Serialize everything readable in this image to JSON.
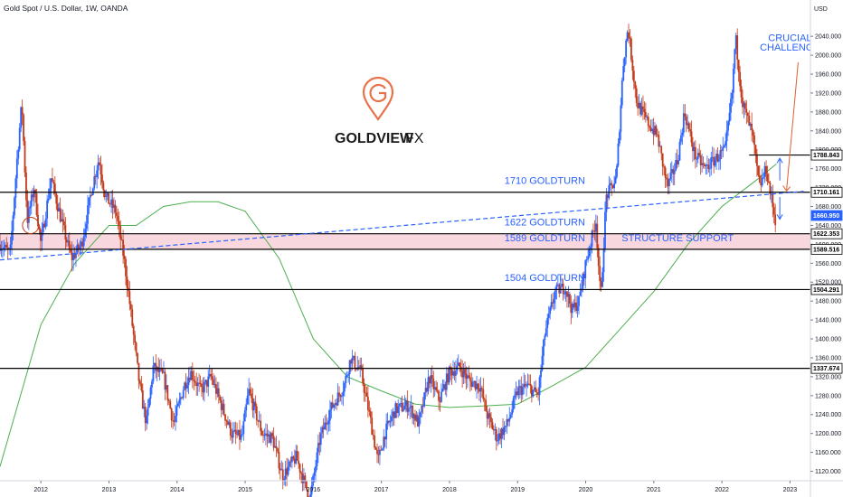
{
  "header": {
    "title": "Gold Spot / U.S. Dollar, 1W, OANDA"
  },
  "logo": {
    "word": "GOLDVIEW",
    "suffix": "FX",
    "accent": "#e8734a"
  },
  "chart_data": {
    "type": "candlestick",
    "currency": "USD",
    "x_ticks": [
      "2012",
      "2013",
      "2014",
      "2015",
      "2016",
      "2017",
      "2018",
      "2019",
      "2020",
      "2021",
      "2022",
      "2023"
    ],
    "x_range": [
      2011.4,
      2023.3
    ],
    "y_range": [
      1100,
      2090
    ],
    "y_ticks": [
      1120,
      1160,
      1200,
      1240,
      1280,
      1320,
      1360,
      1400,
      1440,
      1480,
      1520,
      1560,
      1600,
      1640,
      1680,
      1720,
      1760,
      1800,
      1840,
      1880,
      1920,
      1960,
      2000,
      2040
    ],
    "y_tick_labels": [
      "1120.000",
      "1160.000",
      "1200.000",
      "1240.000",
      "1280.000",
      "1320.000",
      "1360.000",
      "1400.000",
      "1440.000",
      "1480.000",
      "1520.000",
      "1560.000",
      "1600.000",
      "1640.000",
      "1680.000",
      "1720.000",
      "1760.000",
      "1800.000",
      "1840.000",
      "1880.000",
      "1920.000",
      "1960.000",
      "2000.000",
      "2040.000"
    ],
    "price_path": [
      [
        2011.4,
        1600
      ],
      [
        2011.55,
        1580
      ],
      [
        2011.65,
        1780
      ],
      [
        2011.72,
        1900
      ],
      [
        2011.8,
        1650
      ],
      [
        2011.9,
        1720
      ],
      [
        2012.0,
        1600
      ],
      [
        2012.15,
        1740
      ],
      [
        2012.3,
        1650
      ],
      [
        2012.45,
        1570
      ],
      [
        2012.6,
        1600
      ],
      [
        2012.75,
        1720
      ],
      [
        2012.85,
        1780
      ],
      [
        2012.95,
        1700
      ],
      [
        2013.1,
        1670
      ],
      [
        2013.22,
        1570
      ],
      [
        2013.3,
        1480
      ],
      [
        2013.45,
        1300
      ],
      [
        2013.55,
        1220
      ],
      [
        2013.65,
        1340
      ],
      [
        2013.8,
        1320
      ],
      [
        2013.95,
        1220
      ],
      [
        2014.1,
        1300
      ],
      [
        2014.2,
        1330
      ],
      [
        2014.35,
        1290
      ],
      [
        2014.5,
        1320
      ],
      [
        2014.65,
        1260
      ],
      [
        2014.8,
        1200
      ],
      [
        2014.95,
        1190
      ],
      [
        2015.05,
        1290
      ],
      [
        2015.25,
        1200
      ],
      [
        2015.4,
        1190
      ],
      [
        2015.55,
        1110
      ],
      [
        2015.75,
        1150
      ],
      [
        2015.95,
        1060
      ],
      [
        2016.1,
        1190
      ],
      [
        2016.25,
        1250
      ],
      [
        2016.45,
        1300
      ],
      [
        2016.55,
        1360
      ],
      [
        2016.7,
        1330
      ],
      [
        2016.85,
        1220
      ],
      [
        2016.95,
        1140
      ],
      [
        2017.05,
        1200
      ],
      [
        2017.2,
        1250
      ],
      [
        2017.4,
        1260
      ],
      [
        2017.55,
        1220
      ],
      [
        2017.7,
        1320
      ],
      [
        2017.85,
        1270
      ],
      [
        2018.0,
        1330
      ],
      [
        2018.15,
        1340
      ],
      [
        2018.3,
        1310
      ],
      [
        2018.45,
        1300
      ],
      [
        2018.55,
        1240
      ],
      [
        2018.7,
        1190
      ],
      [
        2018.85,
        1220
      ],
      [
        2019.0,
        1290
      ],
      [
        2019.15,
        1300
      ],
      [
        2019.3,
        1280
      ],
      [
        2019.4,
        1410
      ],
      [
        2019.55,
        1500
      ],
      [
        2019.7,
        1510
      ],
      [
        2019.8,
        1460
      ],
      [
        2019.9,
        1480
      ],
      [
        2020.0,
        1560
      ],
      [
        2020.15,
        1650
      ],
      [
        2020.22,
        1480
      ],
      [
        2020.3,
        1700
      ],
      [
        2020.45,
        1740
      ],
      [
        2020.55,
        1980
      ],
      [
        2020.62,
        2060
      ],
      [
        2020.75,
        1900
      ],
      [
        2020.9,
        1860
      ],
      [
        2021.05,
        1830
      ],
      [
        2021.2,
        1720
      ],
      [
        2021.35,
        1780
      ],
      [
        2021.45,
        1880
      ],
      [
        2021.6,
        1790
      ],
      [
        2021.75,
        1760
      ],
      [
        2021.9,
        1780
      ],
      [
        2022.05,
        1800
      ],
      [
        2022.15,
        1920
      ],
      [
        2022.2,
        2040
      ],
      [
        2022.3,
        1900
      ],
      [
        2022.45,
        1830
      ],
      [
        2022.55,
        1720
      ],
      [
        2022.65,
        1760
      ],
      [
        2022.72,
        1700
      ],
      [
        2022.8,
        1640
      ]
    ],
    "moving_average": [
      [
        2011.4,
        1130
      ],
      [
        2012.0,
        1430
      ],
      [
        2012.5,
        1560
      ],
      [
        2013.0,
        1640
      ],
      [
        2013.4,
        1640
      ],
      [
        2013.8,
        1680
      ],
      [
        2014.2,
        1690
      ],
      [
        2014.6,
        1690
      ],
      [
        2015.0,
        1670
      ],
      [
        2015.5,
        1570
      ],
      [
        2016.0,
        1400
      ],
      [
        2016.5,
        1320
      ],
      [
        2017.0,
        1290
      ],
      [
        2017.5,
        1262
      ],
      [
        2018.0,
        1255
      ],
      [
        2018.5,
        1258
      ],
      [
        2019.0,
        1262
      ],
      [
        2019.5,
        1300
      ],
      [
        2020.0,
        1340
      ],
      [
        2020.5,
        1420
      ],
      [
        2021.0,
        1500
      ],
      [
        2021.5,
        1600
      ],
      [
        2022.0,
        1680
      ],
      [
        2022.5,
        1735
      ],
      [
        2022.8,
        1770
      ]
    ],
    "levels": [
      {
        "value": 1788.843,
        "label": "1788.843",
        "x_from": 2022.4
      },
      {
        "value": 1710.161,
        "label": "1710.161",
        "x_from": 2011.4
      },
      {
        "value": 1504.291,
        "label": "1504.291",
        "x_from": 2011.4
      },
      {
        "value": 1337.674,
        "label": "1337.674",
        "x_from": 2011.4
      }
    ],
    "support_zone": {
      "from": 1589.516,
      "to": 1622.353
    },
    "price_tags": [
      {
        "value": 1788.843,
        "label": "1788.843",
        "style": "white"
      },
      {
        "value": 1710.161,
        "label": "1710.161",
        "style": "white"
      },
      {
        "value": 1660.95,
        "label": "1660.950",
        "style": "blue"
      },
      {
        "value": 1622.353,
        "label": "1622.353",
        "style": "white"
      },
      {
        "value": 1589.516,
        "label": "1589.516",
        "style": "white"
      },
      {
        "value": 1504.291,
        "label": "1504.291",
        "style": "white"
      },
      {
        "value": 1337.674,
        "label": "1337.674",
        "style": "white"
      }
    ],
    "trendline": [
      [
        2011.4,
        1567
      ],
      [
        2023.2,
        1712
      ]
    ],
    "annotations": [
      {
        "text": "1710 GOLDTURN",
        "x": 2019.4,
        "y": 1728
      },
      {
        "text": "1622 GOLDTURN",
        "x": 2019.4,
        "y": 1640
      },
      {
        "text": "1589 GOLDTURN",
        "x": 2019.4,
        "y": 1606
      },
      {
        "text": "1504 GOLDTURN",
        "x": 2019.4,
        "y": 1522
      },
      {
        "text": "STRUCTURE SUPPORT",
        "x": 2021.35,
        "y": 1606
      },
      {
        "text": "CRUCIAL",
        "x": 2023.0,
        "y": 2030
      },
      {
        "text": "CHALLENGE",
        "x": 2023.0,
        "y": 2010
      }
    ],
    "colors": {
      "up": "#2962ff",
      "down": "#c23a1a",
      "level": "#000000",
      "trend": "#2962ff",
      "ma": "#4caf50",
      "zone": "#f8d7de",
      "arrow_red": "#e06030"
    }
  }
}
